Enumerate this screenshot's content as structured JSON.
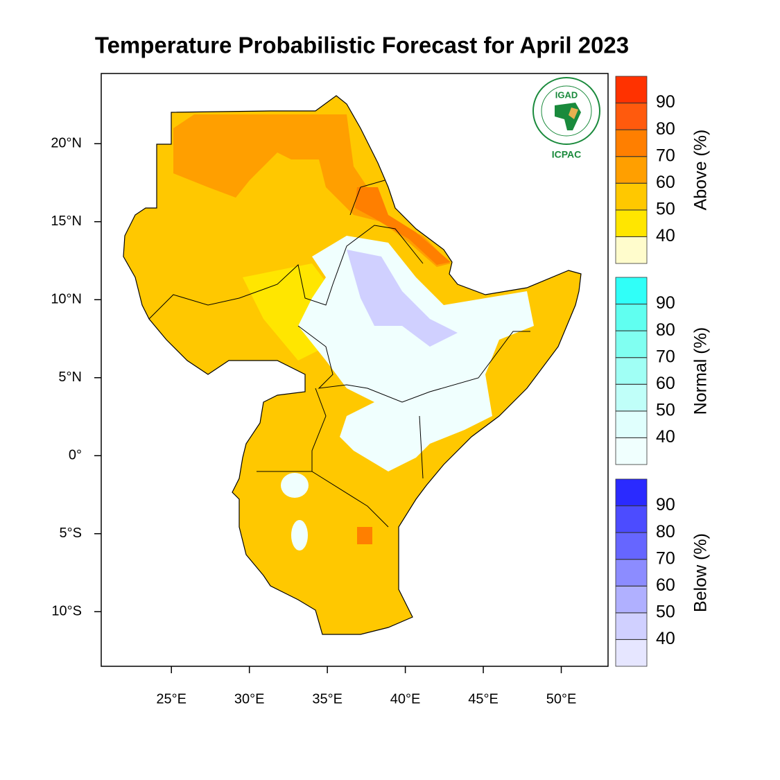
{
  "title": "Temperature Probabilistic Forecast for April 2023",
  "map": {
    "xlim": [
      20.5,
      53
    ],
    "ylim": [
      -13.5,
      24.5
    ],
    "xticks": [
      {
        "value": 25,
        "label": "25°E"
      },
      {
        "value": 30,
        "label": "30°E"
      },
      {
        "value": 35,
        "label": "35°E"
      },
      {
        "value": 40,
        "label": "40°E"
      },
      {
        "value": 45,
        "label": "45°E"
      },
      {
        "value": 50,
        "label": "50°E"
      }
    ],
    "yticks": [
      {
        "value": 20,
        "label": "20°N"
      },
      {
        "value": 15,
        "label": "15°N"
      },
      {
        "value": 10,
        "label": "10°N"
      },
      {
        "value": 5,
        "label": "5°N"
      },
      {
        "value": 0,
        "label": "0°"
      },
      {
        "value": -5,
        "label": "5°S"
      },
      {
        "value": -10,
        "label": "10°S"
      }
    ]
  },
  "logo": {
    "top": "IGAD",
    "bottom": "ICPAC"
  },
  "colorbars": [
    {
      "label": "Above (%)",
      "ticks": [
        40,
        50,
        60,
        70,
        80,
        90
      ],
      "colors": [
        "#fffccc",
        "#ffe600",
        "#ffc800",
        "#ff9f00",
        "#ff7f00",
        "#ff5a0d",
        "#ff3200"
      ]
    },
    {
      "label": "Normal (%)",
      "ticks": [
        40,
        50,
        60,
        70,
        80,
        90
      ],
      "colors": [
        "#f0fffe",
        "#e0fffd",
        "#c0fff9",
        "#a0fff5",
        "#80fff1",
        "#60fff0",
        "#30fff8"
      ]
    },
    {
      "label": "Below (%)",
      "ticks": [
        40,
        50,
        60,
        70,
        80,
        90
      ],
      "colors": [
        "#e6e6ff",
        "#d0d0ff",
        "#b0b0ff",
        "#8c8cff",
        "#6666ff",
        "#4c4cff",
        "#2a2aff"
      ]
    }
  ]
}
